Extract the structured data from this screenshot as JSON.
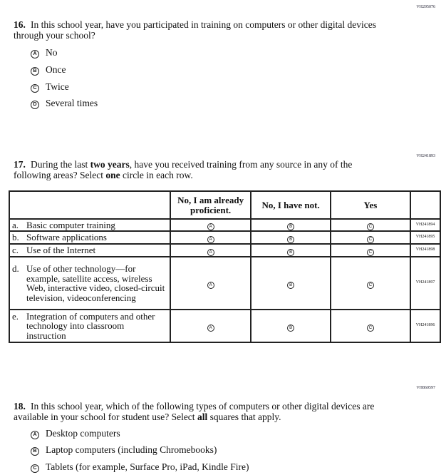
{
  "q16": {
    "code": "VH295076",
    "number": "16.",
    "text": "In this school year, have you participated in training on computers or other digital devices through your school?",
    "options": [
      {
        "letter": "A",
        "label": "No"
      },
      {
        "letter": "B",
        "label": "Once"
      },
      {
        "letter": "C",
        "label": "Twice"
      },
      {
        "letter": "D",
        "label": "Several times"
      }
    ]
  },
  "q17": {
    "code": "VH241893",
    "number": "17.",
    "text_pre": "During the last ",
    "text_bold": "two years",
    "text_mid": ", have you received training from any source in any of the following areas? Select ",
    "text_bold2": "one",
    "text_post": " circle in each row.",
    "columns": [
      "No, I am already proficient.",
      "No, I have not.",
      "Yes"
    ],
    "bubbles": [
      "A",
      "B",
      "C"
    ],
    "rows": [
      {
        "letter": "a.",
        "label": "Basic computer training",
        "code": "VH241894"
      },
      {
        "letter": "b.",
        "label": "Software applications",
        "code": "VH241895"
      },
      {
        "letter": "c.",
        "label": "Use of the Internet",
        "code": "VH241898"
      },
      {
        "letter": "d.",
        "label": "Use of other technology—for example, satellite access, wireless Web, interactive video, closed-circuit television, videoconferencing",
        "code": "VH241897"
      },
      {
        "letter": "e.",
        "label": "Integration of computers and other technology into classroom instruction",
        "code": "VH241896"
      }
    ]
  },
  "q18": {
    "code": "VH860597",
    "number": "18.",
    "text_pre": "In this school year, which of the following types of computers or other digital devices are available in your school for student use? Select ",
    "text_bold": "all",
    "text_post": " squares that apply.",
    "options": [
      {
        "letter": "A",
        "label": "Desktop computers"
      },
      {
        "letter": "B",
        "label": "Laptop computers (including Chromebooks)"
      },
      {
        "letter": "C",
        "label": "Tablets (for example, Surface Pro, iPad, Kindle Fire)"
      }
    ]
  }
}
